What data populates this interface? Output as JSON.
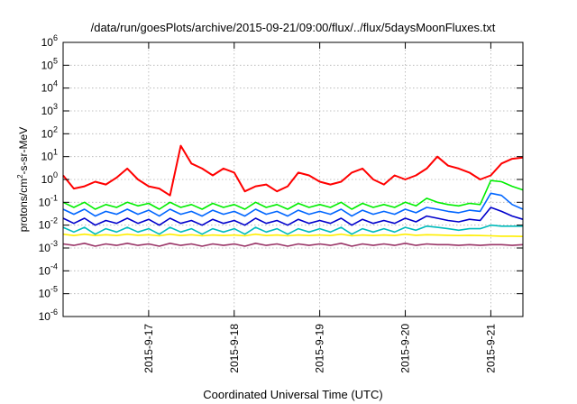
{
  "chart_data": {
    "type": "line",
    "title": "/data/run/goesPlots/archive/2015-09-21/09:00/flux/../flux/5daysMoonFluxes.txt",
    "xlabel": "Coordinated Universal Time (UTC)",
    "ylabel": {
      "prefix": "protons/cm",
      "sup": "2",
      "suffix": "-s-sr-MeV"
    },
    "yscale": "log",
    "ylim": [
      1e-06,
      1000000.0
    ],
    "ytick_labels": [
      {
        "base": "10",
        "exp": "-6"
      },
      {
        "base": "10",
        "exp": "-5"
      },
      {
        "base": "10",
        "exp": "-4"
      },
      {
        "base": "10",
        "exp": "-3"
      },
      {
        "base": "10",
        "exp": "-2"
      },
      {
        "base": "10",
        "exp": "-1"
      },
      {
        "base": "10",
        "exp": "0"
      },
      {
        "base": "10",
        "exp": "1"
      },
      {
        "base": "10",
        "exp": "2"
      },
      {
        "base": "10",
        "exp": "3"
      },
      {
        "base": "10",
        "exp": "4"
      },
      {
        "base": "10",
        "exp": "5"
      },
      {
        "base": "10",
        "exp": "6"
      }
    ],
    "xlim": [
      "2015-09-16 00:00",
      "2015-09-21 09:00"
    ],
    "xtick_labels": [
      "2015-9-17",
      "2015-9-18",
      "2015-9-19",
      "2015-9-20",
      "2015-9-21"
    ],
    "grid": true,
    "x": [
      "2015-09-16 00:00",
      "2015-09-16 03:00",
      "2015-09-16 06:00",
      "2015-09-16 09:00",
      "2015-09-16 12:00",
      "2015-09-16 15:00",
      "2015-09-16 18:00",
      "2015-09-16 21:00",
      "2015-09-17 00:00",
      "2015-09-17 03:00",
      "2015-09-17 06:00",
      "2015-09-17 09:00",
      "2015-09-17 12:00",
      "2015-09-17 15:00",
      "2015-09-17 18:00",
      "2015-09-17 21:00",
      "2015-09-18 00:00",
      "2015-09-18 03:00",
      "2015-09-18 06:00",
      "2015-09-18 09:00",
      "2015-09-18 12:00",
      "2015-09-18 15:00",
      "2015-09-18 18:00",
      "2015-09-18 21:00",
      "2015-09-19 00:00",
      "2015-09-19 03:00",
      "2015-09-19 06:00",
      "2015-09-19 09:00",
      "2015-09-19 12:00",
      "2015-09-19 15:00",
      "2015-09-19 18:00",
      "2015-09-19 21:00",
      "2015-09-20 00:00",
      "2015-09-20 03:00",
      "2015-09-20 06:00",
      "2015-09-20 09:00",
      "2015-09-20 12:00",
      "2015-09-20 15:00",
      "2015-09-20 18:00",
      "2015-09-20 21:00",
      "2015-09-21 00:00",
      "2015-09-21 03:00",
      "2015-09-21 06:00",
      "2015-09-21 09:00"
    ],
    "series": [
      {
        "color": "#ff0000",
        "values": [
          1.5,
          0.4,
          0.5,
          0.8,
          0.6,
          1.2,
          3.0,
          1.0,
          0.5,
          0.4,
          0.2,
          30,
          5.0,
          3.0,
          1.5,
          3.0,
          2.0,
          0.3,
          0.5,
          0.6,
          0.3,
          0.5,
          2.0,
          1.5,
          0.8,
          0.6,
          0.8,
          2.0,
          3.0,
          1.0,
          0.6,
          1.5,
          1.0,
          1.5,
          3.0,
          10.0,
          4.0,
          3.0,
          2.0,
          1.0,
          1.5,
          5.0,
          8.0,
          9.0
        ]
      },
      {
        "color": "#00ee00",
        "values": [
          0.1,
          0.06,
          0.1,
          0.05,
          0.08,
          0.06,
          0.1,
          0.07,
          0.09,
          0.05,
          0.1,
          0.06,
          0.08,
          0.05,
          0.09,
          0.06,
          0.08,
          0.05,
          0.1,
          0.06,
          0.08,
          0.05,
          0.09,
          0.06,
          0.08,
          0.06,
          0.1,
          0.05,
          0.09,
          0.06,
          0.08,
          0.06,
          0.1,
          0.07,
          0.15,
          0.1,
          0.08,
          0.07,
          0.09,
          0.08,
          0.9,
          0.8,
          0.5,
          0.35
        ]
      },
      {
        "color": "#0066ff",
        "values": [
          0.05,
          0.03,
          0.05,
          0.025,
          0.04,
          0.03,
          0.05,
          0.03,
          0.045,
          0.025,
          0.05,
          0.03,
          0.04,
          0.025,
          0.045,
          0.03,
          0.04,
          0.025,
          0.05,
          0.03,
          0.04,
          0.025,
          0.045,
          0.03,
          0.04,
          0.03,
          0.05,
          0.025,
          0.045,
          0.03,
          0.04,
          0.03,
          0.05,
          0.035,
          0.06,
          0.05,
          0.04,
          0.035,
          0.045,
          0.04,
          0.25,
          0.2,
          0.08,
          0.05
        ]
      },
      {
        "color": "#0000cc",
        "values": [
          0.02,
          0.012,
          0.02,
          0.01,
          0.016,
          0.012,
          0.02,
          0.012,
          0.018,
          0.01,
          0.02,
          0.012,
          0.016,
          0.01,
          0.018,
          0.012,
          0.016,
          0.01,
          0.02,
          0.012,
          0.016,
          0.01,
          0.018,
          0.012,
          0.016,
          0.012,
          0.02,
          0.01,
          0.018,
          0.012,
          0.016,
          0.012,
          0.02,
          0.014,
          0.025,
          0.02,
          0.016,
          0.014,
          0.018,
          0.016,
          0.06,
          0.04,
          0.025,
          0.018
        ]
      },
      {
        "color": "#00bbbb",
        "values": [
          0.008,
          0.005,
          0.008,
          0.004,
          0.007,
          0.005,
          0.008,
          0.005,
          0.007,
          0.004,
          0.008,
          0.005,
          0.007,
          0.004,
          0.007,
          0.005,
          0.007,
          0.004,
          0.008,
          0.005,
          0.007,
          0.004,
          0.007,
          0.005,
          0.007,
          0.005,
          0.008,
          0.004,
          0.007,
          0.005,
          0.007,
          0.005,
          0.008,
          0.006,
          0.009,
          0.008,
          0.007,
          0.006,
          0.007,
          0.007,
          0.01,
          0.009,
          0.009,
          0.009
        ]
      },
      {
        "color": "#ffee00",
        "values": [
          0.004,
          0.0035,
          0.004,
          0.0035,
          0.0038,
          0.0035,
          0.004,
          0.0036,
          0.0038,
          0.0034,
          0.004,
          0.0035,
          0.0038,
          0.0034,
          0.0037,
          0.0035,
          0.0037,
          0.0034,
          0.004,
          0.0035,
          0.0037,
          0.0034,
          0.0037,
          0.0035,
          0.0037,
          0.0035,
          0.004,
          0.0034,
          0.0037,
          0.0035,
          0.0037,
          0.0035,
          0.004,
          0.0036,
          0.0038,
          0.0037,
          0.0036,
          0.0035,
          0.0036,
          0.0035,
          0.0034,
          0.0033,
          0.0033,
          0.0032
        ]
      },
      {
        "color": "#993366",
        "values": [
          0.0015,
          0.0013,
          0.0016,
          0.0012,
          0.0015,
          0.0013,
          0.0016,
          0.0013,
          0.0015,
          0.0012,
          0.0016,
          0.0013,
          0.0015,
          0.0012,
          0.0015,
          0.0013,
          0.0015,
          0.0012,
          0.0016,
          0.0013,
          0.0015,
          0.0012,
          0.0015,
          0.0013,
          0.0015,
          0.0013,
          0.0016,
          0.0012,
          0.0015,
          0.0013,
          0.0015,
          0.0013,
          0.0016,
          0.0013,
          0.0015,
          0.0014,
          0.0014,
          0.0013,
          0.0014,
          0.0013,
          0.0014,
          0.0014,
          0.0013,
          0.0014
        ]
      }
    ]
  }
}
